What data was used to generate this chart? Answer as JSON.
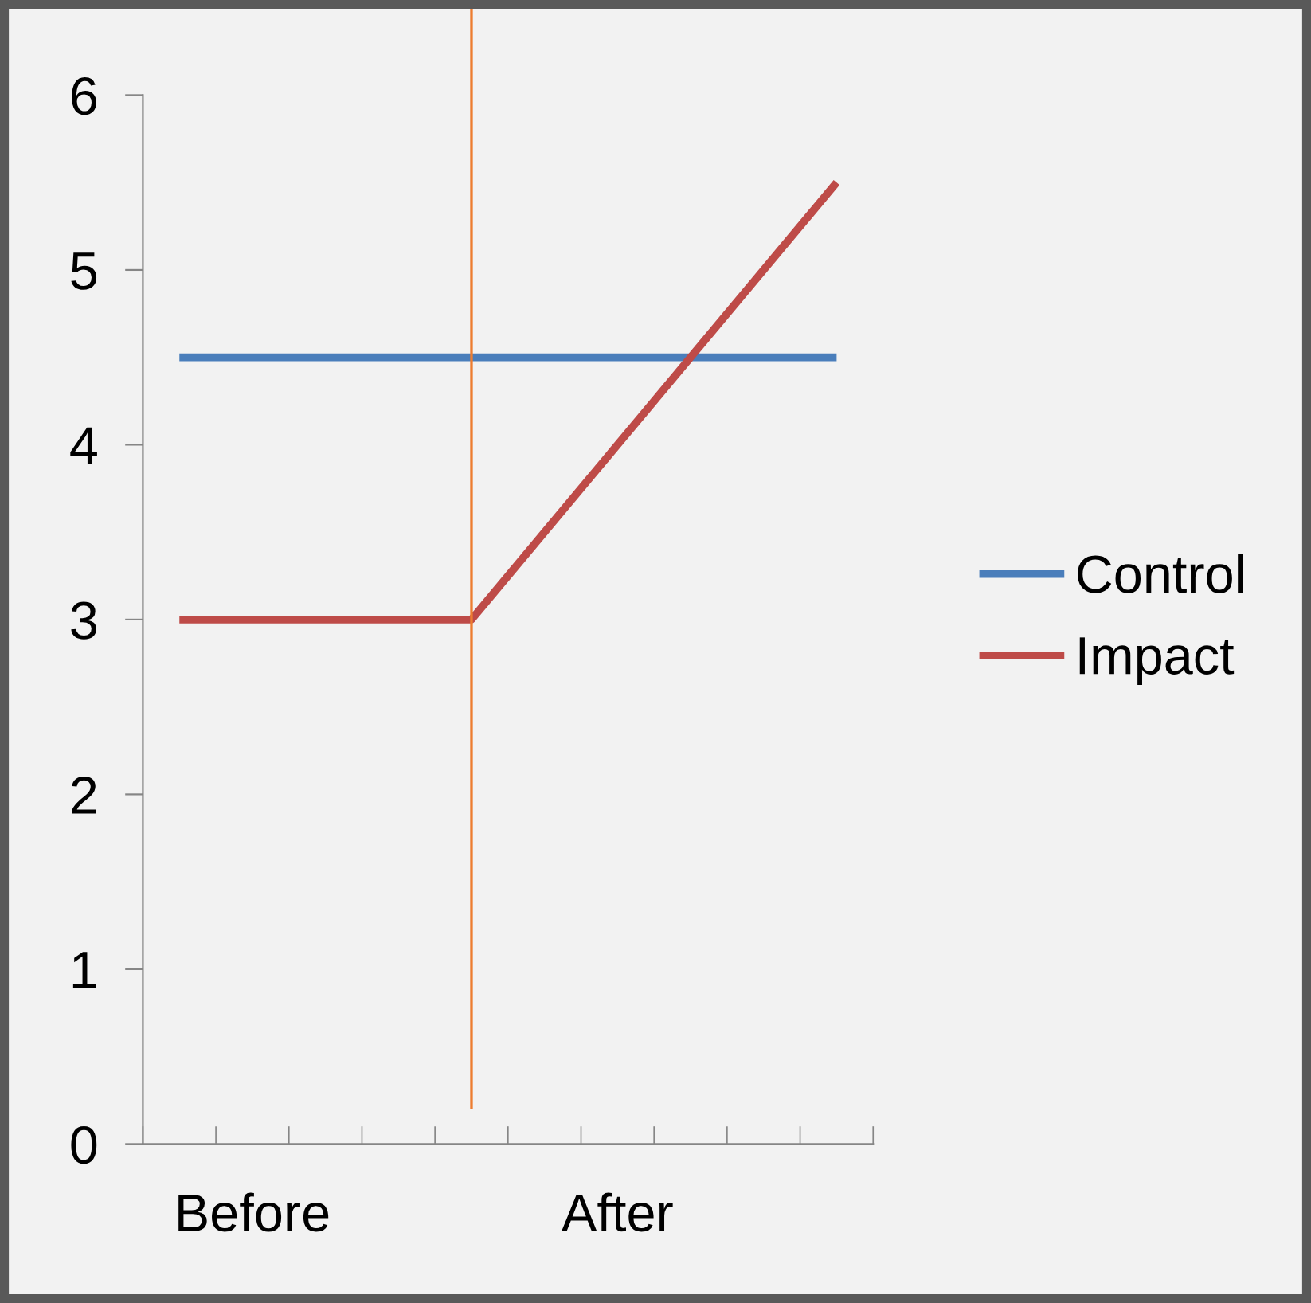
{
  "chart_data": {
    "type": "line",
    "categories": [
      null,
      "Before",
      null,
      null,
      null,
      null,
      "After",
      null,
      null,
      null
    ],
    "series": [
      {
        "name": "Control",
        "color": "#4a7ebb",
        "values": [
          4.5,
          4.5,
          4.5,
          4.5,
          4.5,
          4.5,
          4.5,
          4.5,
          4.5,
          4.5
        ]
      },
      {
        "name": "Impact",
        "color": "#be4b48",
        "values": [
          3,
          3,
          3,
          3,
          3,
          3.5,
          4,
          4.5,
          5,
          5.5
        ]
      }
    ],
    "ylim": [
      0,
      6
    ],
    "yticks": [
      0,
      1,
      2,
      3,
      4,
      5,
      6
    ],
    "grid": false,
    "legend": "right",
    "marker": "none",
    "line_style": "solid"
  }
}
